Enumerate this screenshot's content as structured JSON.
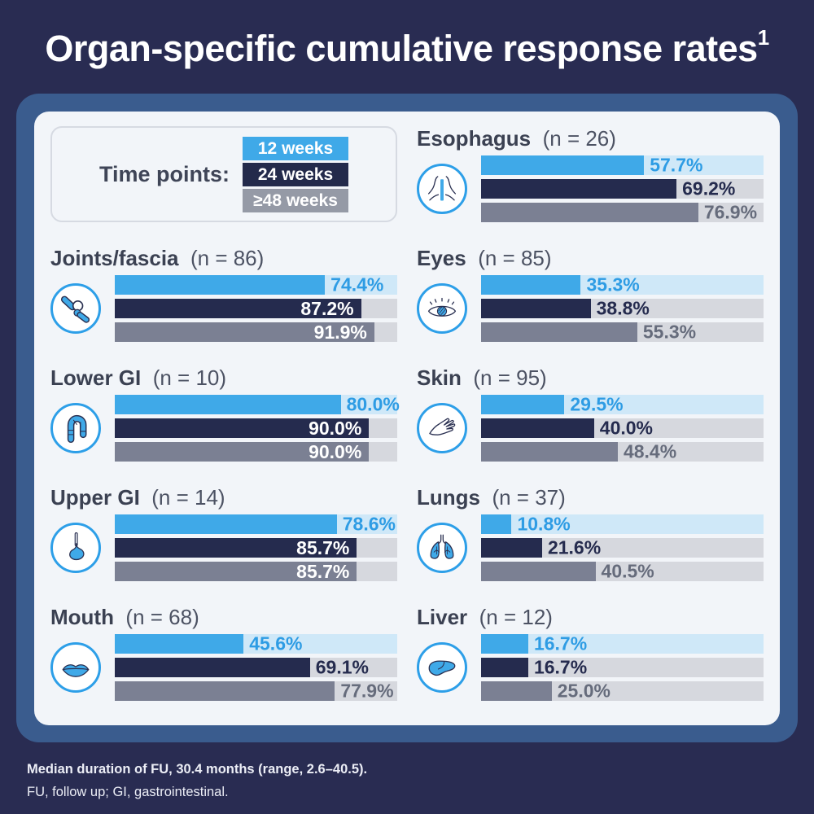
{
  "title": {
    "text": "Organ-specific cumulative response rates",
    "superscript": "1"
  },
  "legend": {
    "label": "Time points:",
    "items": [
      {
        "label": "12 weeks",
        "color": "#3fa9e8"
      },
      {
        "label": "24 weeks",
        "color": "#232a4b"
      },
      {
        "label": "≥48 weeks",
        "color": "#959aa6"
      }
    ]
  },
  "footer": {
    "line1": "Median duration of FU, 30.4 months (range, 2.6–40.5).",
    "line2": "FU, follow up; GI, gastrointestinal."
  },
  "theme": {
    "page_background": "#292c52",
    "frame_blue": "#3a5c8e",
    "card_background": "#f2f5f9",
    "icon_ring_blue": "#2d9fe8",
    "heading_text": "#3b4152"
  },
  "chart_data": {
    "type": "bar",
    "title": "Organ-specific cumulative response rates",
    "series_labels": [
      "12 weeks",
      "24 weeks",
      "≥48 weeks"
    ],
    "series_colors": [
      "#3fa9e8",
      "#252b4e",
      "#7b8093"
    ],
    "track_colors": [
      "#cfe8f8",
      "#d6d8de",
      "#d6d8de"
    ],
    "label_colors": [
      "#2e9ce4",
      "#252b4e",
      "#666c7c"
    ],
    "xlim": [
      0,
      100
    ],
    "unit": "%",
    "inside_label_threshold": 85,
    "legend_position": "top-left",
    "organs": [
      {
        "name": "Joints/fascia",
        "n": 86,
        "n_label": "(n = 86)",
        "icon": "joints-icon",
        "column": "left",
        "values": [
          74.4,
          87.2,
          91.9
        ],
        "labels": [
          "74.4%",
          "87.2%",
          "91.9%"
        ]
      },
      {
        "name": "Lower GI",
        "n": 10,
        "n_label": "(n = 10)",
        "icon": "lower-gi-icon",
        "column": "left",
        "values": [
          80.0,
          90.0,
          90.0
        ],
        "labels": [
          "80.0%",
          "90.0%",
          "90.0%"
        ]
      },
      {
        "name": "Upper GI",
        "n": 14,
        "n_label": "(n = 14)",
        "icon": "upper-gi-icon",
        "column": "left",
        "values": [
          78.6,
          85.7,
          85.7
        ],
        "labels": [
          "78.6%",
          "85.7%",
          "85.7%"
        ]
      },
      {
        "name": "Mouth",
        "n": 68,
        "n_label": "(n = 68)",
        "icon": "mouth-icon",
        "column": "left",
        "values": [
          45.6,
          69.1,
          77.9
        ],
        "labels": [
          "45.6%",
          "69.1%",
          "77.9%"
        ]
      },
      {
        "name": "Esophagus",
        "n": 26,
        "n_label": "(n = 26)",
        "icon": "esophagus-icon",
        "column": "right",
        "values": [
          57.7,
          69.2,
          76.9
        ],
        "labels": [
          "57.7%",
          "69.2%",
          "76.9%"
        ]
      },
      {
        "name": "Eyes",
        "n": 85,
        "n_label": "(n = 85)",
        "icon": "eyes-icon",
        "column": "right",
        "values": [
          35.3,
          38.8,
          55.3
        ],
        "labels": [
          "35.3%",
          "38.8%",
          "55.3%"
        ]
      },
      {
        "name": "Skin",
        "n": 95,
        "n_label": "(n = 95)",
        "icon": "skin-icon",
        "column": "right",
        "values": [
          29.5,
          40.0,
          48.4
        ],
        "labels": [
          "29.5%",
          "40.0%",
          "48.4%"
        ]
      },
      {
        "name": "Lungs",
        "n": 37,
        "n_label": "(n = 37)",
        "icon": "lungs-icon",
        "column": "right",
        "values": [
          10.8,
          21.6,
          40.5
        ],
        "labels": [
          "10.8%",
          "21.6%",
          "40.5%"
        ]
      },
      {
        "name": "Liver",
        "n": 12,
        "n_label": "(n = 12)",
        "icon": "liver-icon",
        "column": "right",
        "values": [
          16.7,
          16.7,
          25.0
        ],
        "labels": [
          "16.7%",
          "16.7%",
          "25.0%"
        ]
      }
    ]
  }
}
